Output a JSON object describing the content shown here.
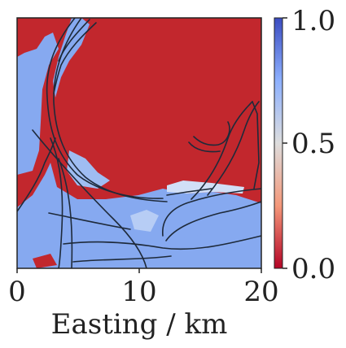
{
  "chart_data": {
    "type": "heatmap",
    "title": "",
    "xlabel": "Easting / km",
    "ylabel": "",
    "xlim": [
      0,
      20
    ],
    "x_ticks": [
      "0",
      "10",
      "20"
    ],
    "colormap": "coolwarm_r",
    "colorbar": {
      "range": [
        0.0,
        1.0
      ],
      "ticks": [
        "0.0",
        "0.5",
        "1.0"
      ],
      "low_color": "#b40426",
      "mid_color": "#dddddd",
      "high_color": "#3b4cc0"
    },
    "colors": {
      "land_value_low": "#c2272d",
      "water_value_high": "#86a9f0",
      "channel_line": "#1e2a3a"
    },
    "description_of_field": "Value near 0 (red) over the urban/land area in the north and east; value near 1 (blue) over the estuary and western channel; black lines trace river/coast channels."
  }
}
